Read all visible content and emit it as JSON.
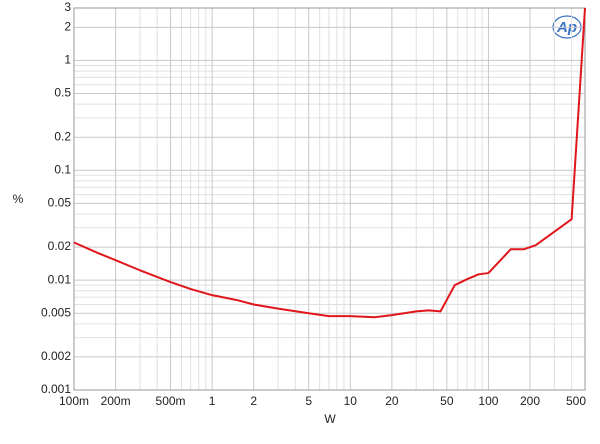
{
  "chart_data": {
    "type": "line",
    "logo": "Ap",
    "xlabel": "W",
    "ylabel": "%",
    "xlog": true,
    "ylog": true,
    "grid": true,
    "xlim": [
      0.1,
      500
    ],
    "ylim": [
      0.001,
      3
    ],
    "xticks": [
      {
        "value": 0.1,
        "label": "100m"
      },
      {
        "value": 0.2,
        "label": "200m"
      },
      {
        "value": 0.5,
        "label": "500m"
      },
      1,
      2,
      5,
      10,
      20,
      50,
      100,
      200,
      500
    ],
    "yticks": [
      0.001,
      0.002,
      0.005,
      0.01,
      0.02,
      0.05,
      0.1,
      0.2,
      0.5,
      1,
      2,
      3
    ],
    "xminorticks": [
      0.3,
      0.4,
      0.6,
      0.7,
      0.8,
      0.9,
      3,
      4,
      6,
      7,
      8,
      9,
      30,
      40,
      60,
      70,
      80,
      90,
      300,
      400
    ],
    "yminorticks": [
      0.003,
      0.004,
      0.006,
      0.007,
      0.008,
      0.009,
      0.03,
      0.04,
      0.06,
      0.07,
      0.08,
      0.09,
      0.3,
      0.4,
      0.6,
      0.7,
      0.8,
      0.9
    ],
    "x": [
      0.1,
      0.15,
      0.2,
      0.3,
      0.5,
      0.7,
      1,
      1.5,
      2,
      3,
      5,
      7,
      10,
      15,
      20,
      30,
      37,
      45,
      57,
      70,
      85,
      100,
      145,
      180,
      220,
      400,
      500
    ],
    "series": [
      {
        "color": "#e0161b",
        "values": [
          0.022,
          0.0176,
          0.0152,
          0.0123,
          0.0096,
          0.0083,
          0.0073,
          0.0066,
          0.006,
          0.0055,
          0.005,
          0.0047,
          0.0047,
          0.0046,
          0.0048,
          0.0052,
          0.0053,
          0.0052,
          0.009,
          0.0102,
          0.0113,
          0.0116,
          0.0191,
          0.0191,
          0.0208,
          0.0359,
          3
        ]
      }
    ]
  }
}
